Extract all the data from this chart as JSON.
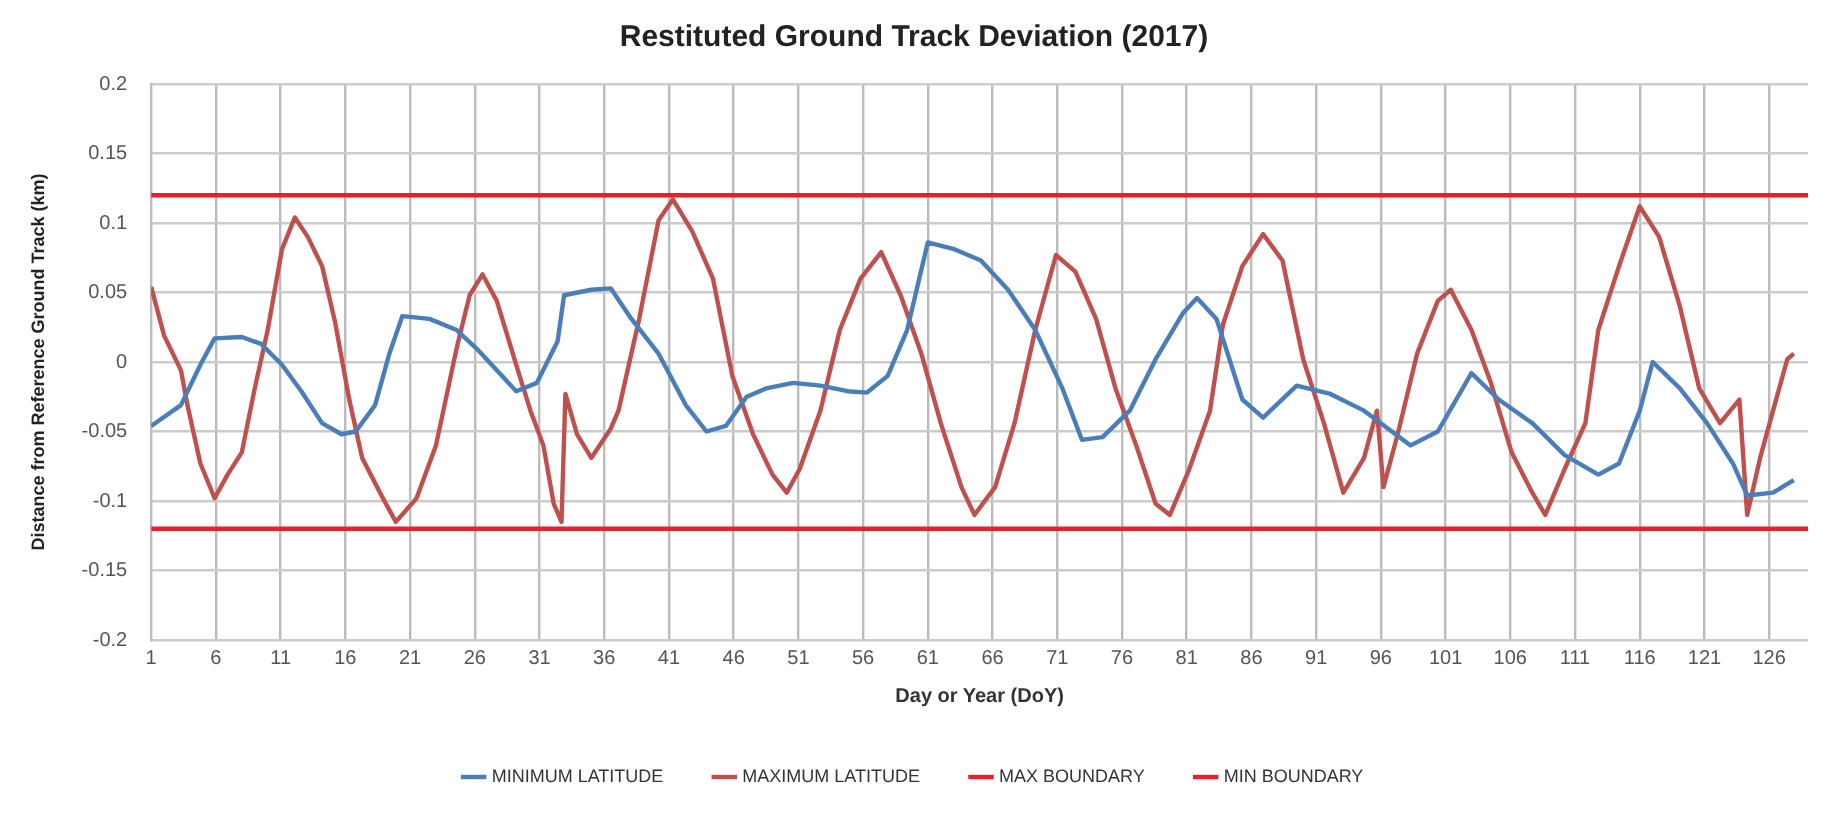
{
  "chart_data": {
    "type": "line",
    "title": "Restituted Ground Track Deviation (2017)",
    "xlabel": "Day or Year (DoY)",
    "ylabel": "Distance from Reference Ground Track (km)",
    "xlim": [
      1,
      129
    ],
    "xticks": [
      1,
      6,
      11,
      16,
      21,
      26,
      31,
      36,
      41,
      46,
      51,
      56,
      61,
      66,
      71,
      76,
      81,
      86,
      91,
      96,
      101,
      106,
      111,
      116,
      121,
      126
    ],
    "ylim": [
      -0.2,
      0.2
    ],
    "yticks": [
      -0.2,
      -0.15,
      -0.1,
      -0.05,
      0,
      0.05,
      0.1,
      0.15,
      0.2
    ],
    "grid": true,
    "legend": "bottom",
    "marker": "none",
    "line_style": "solid",
    "series": [
      {
        "name": "MINIMUM LATITUDE",
        "color": "#4a7ebb",
        "x": [
          1,
          3.3,
          4.8,
          5.9,
          8,
          9.5,
          11.1,
          12.6,
          14.2,
          15.7,
          16.8,
          18.3,
          19.4,
          20.4,
          22.5,
          24.6,
          26.1,
          27.7,
          29.2,
          30.8,
          32.4,
          32.9,
          35,
          36.5,
          38.1,
          40.2,
          42.3,
          43.9,
          45.4,
          47,
          48.5,
          50.6,
          52.7,
          54.8,
          56.3,
          57.9,
          59.4,
          61,
          63.1,
          65.1,
          67.2,
          69.3,
          71.4,
          72.9,
          74.5,
          76.6,
          78.6,
          80.7,
          81.8,
          83.3,
          85.3,
          86.9,
          89.5,
          92.1,
          94.7,
          98.3,
          100.4,
          103,
          105.1,
          107.7,
          110.2,
          112.8,
          114.4,
          116,
          117,
          119.1,
          121.2,
          123.2,
          124.3,
          126.3,
          127.9
        ],
        "values": [
          -0.046,
          -0.031,
          -0.002,
          0.017,
          0.018,
          0.013,
          -0.002,
          -0.021,
          -0.044,
          -0.052,
          -0.05,
          -0.031,
          0.006,
          0.033,
          0.031,
          0.023,
          0.01,
          -0.006,
          -0.021,
          -0.015,
          0.015,
          0.048,
          0.052,
          0.053,
          0.031,
          0.006,
          -0.031,
          -0.05,
          -0.046,
          -0.025,
          -0.019,
          -0.015,
          -0.017,
          -0.021,
          -0.022,
          -0.01,
          0.023,
          0.086,
          0.081,
          0.073,
          0.052,
          0.023,
          -0.019,
          -0.056,
          -0.054,
          -0.035,
          0.002,
          0.035,
          0.046,
          0.031,
          -0.027,
          -0.04,
          -0.017,
          -0.023,
          -0.035,
          -0.06,
          -0.05,
          -0.008,
          -0.027,
          -0.044,
          -0.067,
          -0.081,
          -0.073,
          -0.035,
          0,
          -0.019,
          -0.044,
          -0.073,
          -0.096,
          -0.094,
          -0.085
        ]
      },
      {
        "name": "MAXIMUM LATITUDE",
        "color": "#c0504d",
        "x": [
          1,
          2,
          3.3,
          3.8,
          4.8,
          5.9,
          6.9,
          8,
          9,
          10,
          11.1,
          12.1,
          13.1,
          14.2,
          15.2,
          16.3,
          17.3,
          18.9,
          19.9,
          21.5,
          23,
          24.6,
          25.6,
          26.6,
          27.7,
          29.2,
          30.3,
          31.3,
          32.1,
          32.7,
          33,
          33.9,
          35,
          36.5,
          37.1,
          38.7,
          40.2,
          41.3,
          42.8,
          44.4,
          45.9,
          47.5,
          49,
          50.1,
          51.1,
          52.7,
          54.2,
          55.8,
          57.4,
          58.9,
          60.5,
          62,
          63.6,
          64.6,
          66.2,
          67.7,
          69.3,
          70.9,
          72.4,
          74,
          75.5,
          77.1,
          78.6,
          79.7,
          81.2,
          82.8,
          83.8,
          85.3,
          86.9,
          88.4,
          90,
          91.6,
          93.1,
          94.7,
          95.7,
          96.2,
          97.3,
          98.8,
          100.4,
          101.4,
          103,
          104.5,
          106.1,
          107.7,
          108.7,
          110.2,
          111.8,
          112.8,
          114.4,
          116,
          117.5,
          119.1,
          120.6,
          122.2,
          123.7,
          124.3,
          125.3,
          126.3,
          127.4,
          127.9
        ],
        "values": [
          0.054,
          0.019,
          -0.006,
          -0.031,
          -0.073,
          -0.098,
          -0.081,
          -0.065,
          -0.019,
          0.023,
          0.081,
          0.104,
          0.09,
          0.069,
          0.029,
          -0.027,
          -0.069,
          -0.098,
          -0.115,
          -0.098,
          -0.06,
          0.01,
          0.048,
          0.063,
          0.044,
          -0.002,
          -0.035,
          -0.06,
          -0.102,
          -0.115,
          -0.023,
          -0.052,
          -0.069,
          -0.048,
          -0.035,
          0.031,
          0.102,
          0.117,
          0.094,
          0.06,
          -0.01,
          -0.052,
          -0.081,
          -0.094,
          -0.077,
          -0.035,
          0.023,
          0.06,
          0.079,
          0.048,
          0.006,
          -0.044,
          -0.09,
          -0.11,
          -0.09,
          -0.044,
          0.023,
          0.077,
          0.065,
          0.031,
          -0.019,
          -0.06,
          -0.102,
          -0.11,
          -0.077,
          -0.035,
          0.027,
          0.069,
          0.092,
          0.073,
          0.002,
          -0.044,
          -0.094,
          -0.069,
          -0.035,
          -0.09,
          -0.052,
          0.006,
          0.044,
          0.052,
          0.023,
          -0.015,
          -0.065,
          -0.094,
          -0.11,
          -0.077,
          -0.044,
          0.023,
          0.069,
          0.112,
          0.09,
          0.04,
          -0.019,
          -0.044,
          -0.027,
          -0.11,
          -0.069,
          -0.035,
          0.002,
          0.006
        ]
      },
      {
        "name": "MAX BOUNDARY",
        "color": "#e8202a",
        "x": [
          1,
          129
        ],
        "values": [
          0.12,
          0.12
        ]
      },
      {
        "name": "MIN BOUNDARY",
        "color": "#e8202a",
        "x": [
          1,
          129
        ],
        "values": [
          -0.12,
          -0.12
        ]
      }
    ]
  }
}
